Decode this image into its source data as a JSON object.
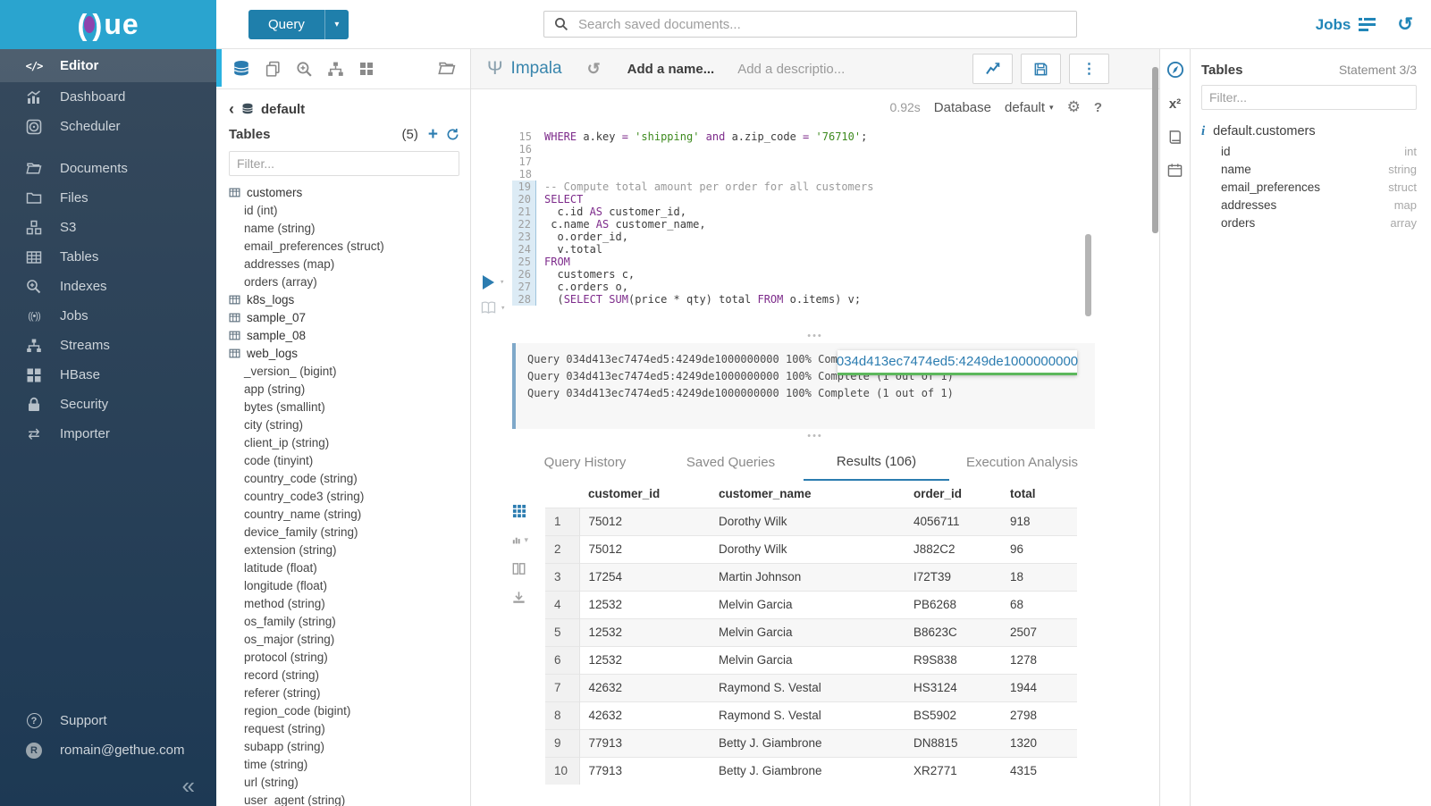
{
  "topbar": {
    "logo_text": "ue",
    "query_button": "Query",
    "search_placeholder": "Search saved documents...",
    "jobs_label": "Jobs"
  },
  "sidebar": {
    "items": [
      {
        "label": "Editor"
      },
      {
        "label": "Dashboard"
      },
      {
        "label": "Scheduler"
      },
      {
        "label": "Documents"
      },
      {
        "label": "Files"
      },
      {
        "label": "S3"
      },
      {
        "label": "Tables"
      },
      {
        "label": "Indexes"
      },
      {
        "label": "Jobs"
      },
      {
        "label": "Streams"
      },
      {
        "label": "HBase"
      },
      {
        "label": "Security"
      },
      {
        "label": "Importer"
      }
    ],
    "support_label": "Support",
    "account_label": "romain@gethue.com",
    "avatar_initial": "R"
  },
  "left_assist": {
    "breadcrumb": "default",
    "tables_title": "Tables",
    "tables_count": "(5)",
    "filter_placeholder": "Filter...",
    "tree": [
      {
        "kind": "table",
        "label": "customers"
      },
      {
        "kind": "col",
        "label": "id (int)"
      },
      {
        "kind": "col",
        "label": "name (string)"
      },
      {
        "kind": "col",
        "label": "email_preferences (struct)"
      },
      {
        "kind": "col",
        "label": "addresses (map)"
      },
      {
        "kind": "col",
        "label": "orders (array)"
      },
      {
        "kind": "table",
        "label": "k8s_logs"
      },
      {
        "kind": "table",
        "label": "sample_07"
      },
      {
        "kind": "table",
        "label": "sample_08"
      },
      {
        "kind": "table",
        "label": "web_logs"
      },
      {
        "kind": "col",
        "label": "_version_ (bigint)"
      },
      {
        "kind": "col",
        "label": "app (string)"
      },
      {
        "kind": "col",
        "label": "bytes (smallint)"
      },
      {
        "kind": "col",
        "label": "city (string)"
      },
      {
        "kind": "col",
        "label": "client_ip (string)"
      },
      {
        "kind": "col",
        "label": "code (tinyint)"
      },
      {
        "kind": "col",
        "label": "country_code (string)"
      },
      {
        "kind": "col",
        "label": "country_code3 (string)"
      },
      {
        "kind": "col",
        "label": "country_name (string)"
      },
      {
        "kind": "col",
        "label": "device_family (string)"
      },
      {
        "kind": "col",
        "label": "extension (string)"
      },
      {
        "kind": "col",
        "label": "latitude (float)"
      },
      {
        "kind": "col",
        "label": "longitude (float)"
      },
      {
        "kind": "col",
        "label": "method (string)"
      },
      {
        "kind": "col",
        "label": "os_family (string)"
      },
      {
        "kind": "col",
        "label": "os_major (string)"
      },
      {
        "kind": "col",
        "label": "protocol (string)"
      },
      {
        "kind": "col",
        "label": "record (string)"
      },
      {
        "kind": "col",
        "label": "referer (string)"
      },
      {
        "kind": "col",
        "label": "region_code (bigint)"
      },
      {
        "kind": "col",
        "label": "request (string)"
      },
      {
        "kind": "col",
        "label": "subapp (string)"
      },
      {
        "kind": "col",
        "label": "time (string)"
      },
      {
        "kind": "col",
        "label": "url (string)"
      },
      {
        "kind": "col",
        "label": "user_agent (string)"
      }
    ]
  },
  "editor": {
    "engine": "Impala",
    "name_placeholder": "Add a name...",
    "description_placeholder": "Add a descriptio...",
    "duration": "0.92s",
    "database_label": "Database",
    "database_value": "default",
    "code_lines": [
      {
        "n": 15,
        "hl": false,
        "tokens": [
          [
            "kw",
            "WHERE"
          ],
          [
            "pl",
            " a.key "
          ],
          [
            "kw",
            "="
          ],
          [
            "pl",
            " "
          ],
          [
            "str",
            "'shipping'"
          ],
          [
            "pl",
            " "
          ],
          [
            "kw",
            "and"
          ],
          [
            "pl",
            " a.zip_code "
          ],
          [
            "kw",
            "="
          ],
          [
            "pl",
            " "
          ],
          [
            "str",
            "'76710'"
          ],
          [
            "pl",
            ";"
          ]
        ]
      },
      {
        "n": 16,
        "hl": false,
        "tokens": []
      },
      {
        "n": 17,
        "hl": false,
        "tokens": []
      },
      {
        "n": 18,
        "hl": false,
        "tokens": []
      },
      {
        "n": 19,
        "hl": true,
        "tokens": [
          [
            "cm",
            "-- Compute total amount per order for all customers"
          ]
        ]
      },
      {
        "n": 20,
        "hl": true,
        "tokens": [
          [
            "kw",
            "SELECT"
          ]
        ]
      },
      {
        "n": 21,
        "hl": true,
        "tokens": [
          [
            "pl",
            "  c.id "
          ],
          [
            "kw",
            "AS"
          ],
          [
            "pl",
            " customer_id,"
          ]
        ]
      },
      {
        "n": 22,
        "hl": true,
        "tokens": [
          [
            "pl",
            " c.name "
          ],
          [
            "kw",
            "AS"
          ],
          [
            "pl",
            " customer_name,"
          ]
        ]
      },
      {
        "n": 23,
        "hl": true,
        "tokens": [
          [
            "pl",
            "  o.order_id,"
          ]
        ]
      },
      {
        "n": 24,
        "hl": true,
        "tokens": [
          [
            "pl",
            "  v.total"
          ]
        ]
      },
      {
        "n": 25,
        "hl": true,
        "tokens": [
          [
            "kw",
            "FROM"
          ]
        ]
      },
      {
        "n": 26,
        "hl": true,
        "tokens": [
          [
            "pl",
            "  customers c,"
          ]
        ]
      },
      {
        "n": 27,
        "hl": true,
        "tokens": [
          [
            "pl",
            "  c.orders o,"
          ]
        ]
      },
      {
        "n": 28,
        "hl": true,
        "tokens": [
          [
            "pl",
            "  ("
          ],
          [
            "kw",
            "SELECT"
          ],
          [
            "pl",
            " "
          ],
          [
            "kw",
            "SUM"
          ],
          [
            "pl",
            "(price * qty) total "
          ],
          [
            "kw",
            "FROM"
          ],
          [
            "pl",
            " o.items) v;"
          ]
        ]
      }
    ],
    "log_lines": [
      "Query 034d413ec7474ed5:4249de1000000000 100% Complete (1 out of 1)",
      "Query 034d413ec7474ed5:4249de1000000000 100% Complete (1 out of 1)",
      "Query 034d413ec7474ed5:4249de1000000000 100% Complete (1 out of 1)"
    ],
    "log_tooltip": "034d413ec7474ed5:4249de1000000000",
    "tabs": [
      {
        "label": "Query History"
      },
      {
        "label": "Saved Queries"
      },
      {
        "label": "Results (106)"
      },
      {
        "label": "Execution Analysis"
      }
    ],
    "results": {
      "columns": [
        "customer_id",
        "customer_name",
        "order_id",
        "total"
      ],
      "rows": [
        [
          "1",
          "75012",
          "Dorothy Wilk",
          "4056711",
          "918"
        ],
        [
          "2",
          "75012",
          "Dorothy Wilk",
          "J882C2",
          "96"
        ],
        [
          "3",
          "17254",
          "Martin Johnson",
          "I72T39",
          "18"
        ],
        [
          "4",
          "12532",
          "Melvin Garcia",
          "PB6268",
          "68"
        ],
        [
          "5",
          "12532",
          "Melvin Garcia",
          "B8623C",
          "2507"
        ],
        [
          "6",
          "12532",
          "Melvin Garcia",
          "R9S838",
          "1278"
        ],
        [
          "7",
          "42632",
          "Raymond S. Vestal",
          "HS3124",
          "1944"
        ],
        [
          "8",
          "42632",
          "Raymond S. Vestal",
          "BS5902",
          "2798"
        ],
        [
          "9",
          "77913",
          "Betty J. Giambrone",
          "DN8815",
          "1320"
        ],
        [
          "10",
          "77913",
          "Betty J. Giambrone",
          "XR2771",
          "4315"
        ]
      ]
    }
  },
  "right_assist": {
    "title": "Tables",
    "statement": "Statement 3/3",
    "filter_placeholder": "Filter...",
    "table": "default.customers",
    "columns": [
      {
        "name": "id",
        "type": "int"
      },
      {
        "name": "name",
        "type": "string"
      },
      {
        "name": "email_preferences",
        "type": "struct"
      },
      {
        "name": "addresses",
        "type": "map"
      },
      {
        "name": "orders",
        "type": "array"
      }
    ]
  },
  "colors": {
    "brand_cyan": "#2aa4cf",
    "logo_purple": "#8e44ad",
    "accent_blue": "#2b7cb0",
    "active_bar_cyan": "#2bb2e0",
    "tooltip_underline_green": "#5cb85c"
  }
}
